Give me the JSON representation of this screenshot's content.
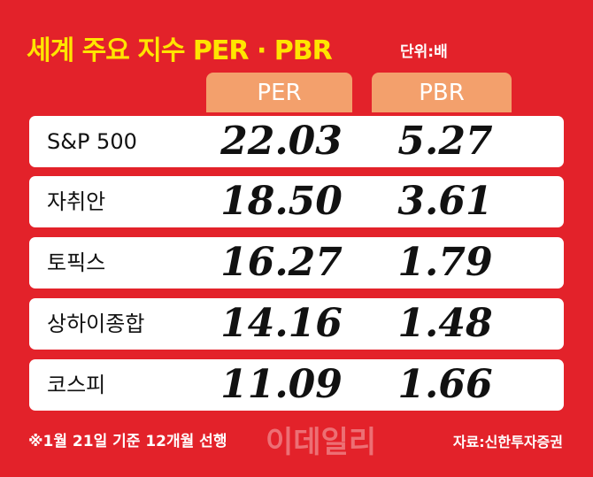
{
  "header": {
    "title": "세계 주요 지수 PER · PBR",
    "unit": "단위:배"
  },
  "table": {
    "columns": [
      "PER",
      "PBR"
    ],
    "rows": [
      [
        "S&P 500",
        "22.03",
        "5.27"
      ],
      [
        "자취안",
        "18.50",
        "3.61"
      ],
      [
        "토픽스",
        "16.27",
        "1.79"
      ],
      [
        "상하이종합",
        "14.16",
        "1.48"
      ],
      [
        "코스피",
        "11.09",
        "1.66"
      ]
    ]
  },
  "footer": {
    "note": "※1월 21일 기준 12개월 선행",
    "watermark": "이데일리",
    "source": "자료:신한투자증권"
  }
}
